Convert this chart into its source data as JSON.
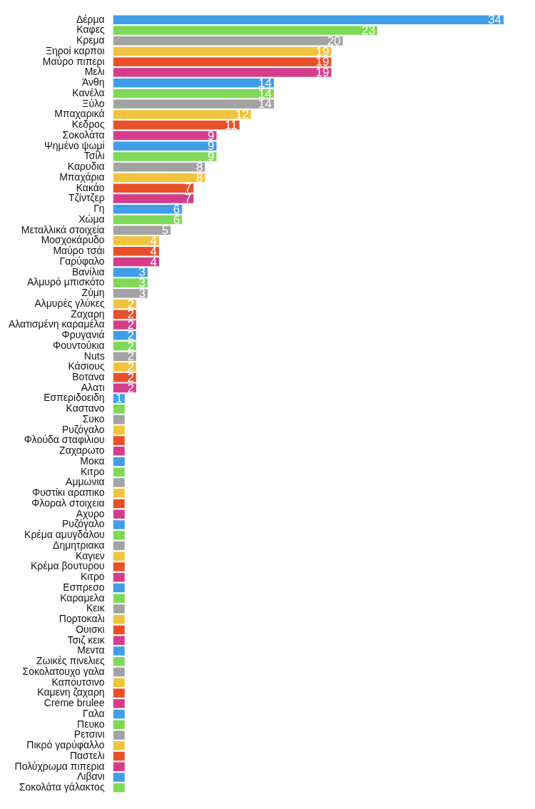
{
  "chart_data": {
    "type": "bar",
    "orientation": "horizontal",
    "legend": false,
    "grid": false,
    "categories": [
      "Δέρμα",
      "Καφες",
      "Κρεμα",
      "Ξηροί καρποι",
      "Μαύρο πιπερι",
      "Μελι",
      "Άνθη",
      "Κανέλα",
      "Ξύλο",
      "Μπαχαρικά",
      "Κεδρος",
      "Σοκολάτα",
      "Ψημένο ψωμί",
      "Τσίλι",
      "Καρυδια",
      "Μπαχάρια",
      "Κακάο",
      "Τζίντζερ",
      "Γη",
      "Χώμα",
      "Μεταλλικά στοιχεία",
      "Μοσχοκάρυδο",
      "Μαύρο τσάι",
      "Γαρύφαλο",
      "Βανίλια",
      "Αλμυρό μπισκότο",
      "Ζύμη",
      "Αλμυρές γλύκες",
      "Ζαχαρη",
      "Αλατισμένη καραμέλα",
      "Φρυγανιά",
      "Φουντούκια",
      "Nuts",
      "Κάσιους",
      "Βοτανα",
      "Αλατι",
      "Εσπεριδοειδη",
      "Καστανο",
      "Συκο",
      "Ρυζόγαλο",
      "Φλούδα σταφιλιου",
      "Ζαχαρωτο",
      "Μοκα",
      "Κιτρο",
      "Αμμωνια",
      "Φυστίκι αραπικο",
      "Φλοραλ στοιχεια",
      "Αχυρο",
      "Ρυζόγαλο",
      "Κρέμα αμυγδάλου",
      "Δημητριακα",
      "Καγιεν",
      "Κρέμα βουτυρου",
      "Κιτρο",
      "Εσπρεσο",
      "Καραμελα",
      "Κεικ",
      "Πορτοκαλι",
      "Ουισκι",
      "Τσιζ κεικ",
      "Μεντα",
      "Ζωικές πινελιες",
      "Σοκολατουχο γαλα",
      "Καπουτσινο",
      "Καμενη ζαχαρη",
      "Creme brulee",
      "Γαλα",
      "Πευκο",
      "Ρετσινι",
      "Πικρό γαρύφαλλο",
      "Παστελι",
      "Πολύχρωμα πιπερια",
      "Λιβανι",
      "Σοκολάτα γάλακτος"
    ],
    "values": [
      34,
      23,
      20,
      19,
      19,
      19,
      14,
      14,
      14,
      12,
      11,
      9,
      9,
      9,
      8,
      8,
      7,
      7,
      6,
      6,
      5,
      4,
      4,
      4,
      3,
      3,
      3,
      2,
      2,
      2,
      2,
      2,
      2,
      2,
      2,
      2,
      1,
      1,
      1,
      1,
      1,
      1,
      1,
      1,
      1,
      1,
      1,
      1,
      1,
      1,
      1,
      1,
      1,
      1,
      1,
      1,
      1,
      1,
      1,
      1,
      1,
      1,
      1,
      1,
      1,
      1,
      1,
      1,
      1,
      1,
      1,
      1,
      1,
      1
    ],
    "value_labels": [
      "34",
      "23",
      "20",
      "19",
      "19",
      "19",
      "14",
      "14",
      "14",
      "12",
      "11",
      "9",
      "9",
      "9",
      "8",
      "8",
      "7",
      "7",
      "6",
      "6",
      "5",
      "4",
      "4",
      "4",
      "3",
      "3",
      "3",
      "2",
      "2",
      "2",
      "2",
      "2",
      "2",
      "2",
      "2",
      "2",
      "1",
      null,
      null,
      null,
      null,
      null,
      null,
      null,
      null,
      null,
      null,
      null,
      null,
      null,
      null,
      null,
      null,
      null,
      null,
      null,
      null,
      null,
      null,
      null,
      null,
      null,
      null,
      null,
      null,
      null,
      null,
      null,
      null,
      null,
      null,
      null,
      null,
      null
    ],
    "colors": [
      "#3f9ee8",
      "#7ed957",
      "#a3a3a3",
      "#f0c43c",
      "#e8502a",
      "#d63c8c",
      "#3f9ee8",
      "#7ed957",
      "#a3a3a3",
      "#f0c43c",
      "#e8502a",
      "#d63c8c",
      "#3f9ee8",
      "#7ed957",
      "#a3a3a3",
      "#f0c43c",
      "#e8502a",
      "#d63c8c",
      "#3f9ee8",
      "#7ed957",
      "#a3a3a3",
      "#f0c43c",
      "#e8502a",
      "#d63c8c",
      "#3f9ee8",
      "#7ed957",
      "#a3a3a3",
      "#f0c43c",
      "#e8502a",
      "#d63c8c",
      "#3f9ee8",
      "#7ed957",
      "#a3a3a3",
      "#f0c43c",
      "#e8502a",
      "#d63c8c",
      "#3f9ee8",
      "#7ed957",
      "#a3a3a3",
      "#f0c43c",
      "#e8502a",
      "#d63c8c",
      "#3f9ee8",
      "#7ed957",
      "#a3a3a3",
      "#f0c43c",
      "#e8502a",
      "#d63c8c",
      "#3f9ee8",
      "#7ed957",
      "#a3a3a3",
      "#f0c43c",
      "#e8502a",
      "#d63c8c",
      "#3f9ee8",
      "#7ed957",
      "#a3a3a3",
      "#f0c43c",
      "#e8502a",
      "#d63c8c",
      "#3f9ee8",
      "#7ed957",
      "#a3a3a3",
      "#f0c43c",
      "#e8502a",
      "#d63c8c",
      "#3f9ee8",
      "#7ed957",
      "#a3a3a3",
      "#f0c43c",
      "#e8502a",
      "#d63c8c",
      "#3f9ee8",
      "#7ed957"
    ]
  }
}
